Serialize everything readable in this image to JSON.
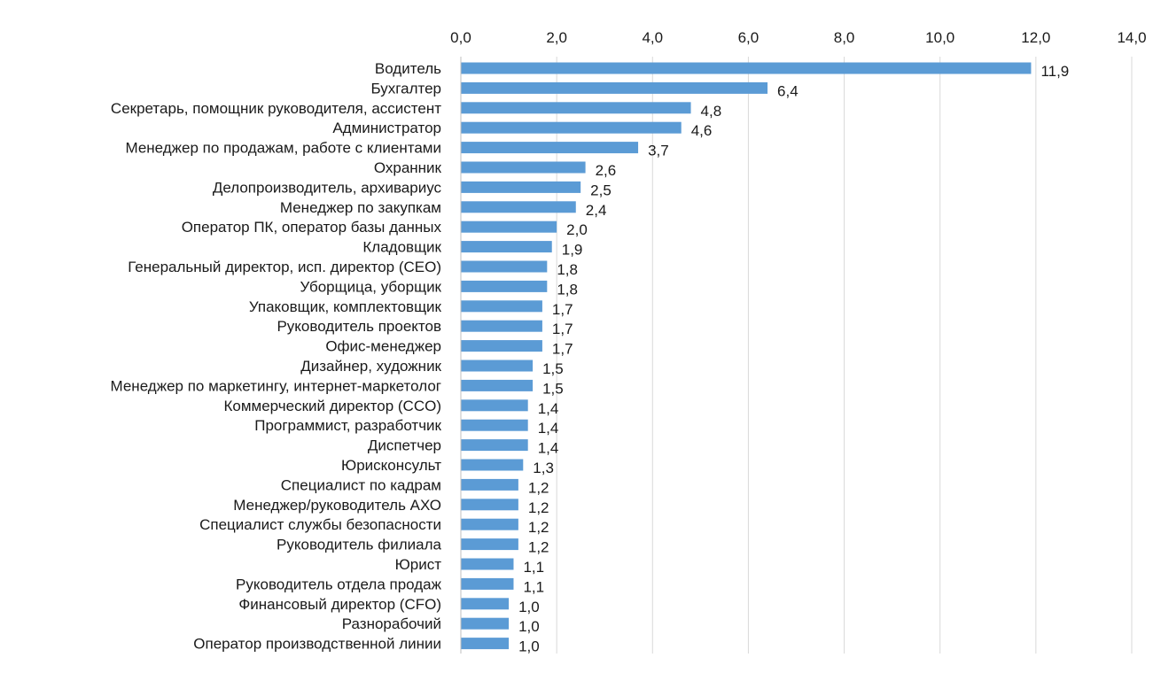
{
  "chart_data": {
    "type": "bar",
    "orientation": "horizontal",
    "title": "",
    "xlabel": "",
    "ylabel": "",
    "xlim": [
      0,
      14
    ],
    "x_ticks": [
      "0,0",
      "2,0",
      "4,0",
      "6,0",
      "8,0",
      "10,0",
      "12,0",
      "14,0"
    ],
    "x_tick_values": [
      0,
      2,
      4,
      6,
      8,
      10,
      12,
      14
    ],
    "x_axis_position": "top",
    "grid": true,
    "bar_color": "#5b9bd5",
    "categories": [
      "Водитель",
      "Бухгалтер",
      "Секретарь, помощник руководителя, ассистент",
      "Администратор",
      "Менеджер по продажам, работе с клиентами",
      "Охранник",
      "Делопроизводитель, архивариус",
      "Менеджер по закупкам",
      "Оператор ПК, оператор базы данных",
      "Кладовщик",
      "Генеральный директор, исп. директор (CEO)",
      "Уборщица, уборщик",
      "Упаковщик, комплектовщик",
      "Руководитель проектов",
      "Офис-менеджер",
      "Дизайнер, художник",
      "Менеджер по маркетингу, интернет-маркетолог",
      "Коммерческий директор (CCO)",
      "Программист, разработчик",
      "Диспетчер",
      "Юрисконсульт",
      "Специалист по кадрам",
      "Менеджер/руководитель АХО",
      "Специалист службы безопасности",
      "Руководитель филиала",
      "Юрист",
      "Руководитель отдела продаж",
      "Финансовый директор (CFO)",
      "Разнорабочий",
      "Оператор производственной линии"
    ],
    "values": [
      11.9,
      6.4,
      4.8,
      4.6,
      3.7,
      2.6,
      2.5,
      2.4,
      2.0,
      1.9,
      1.8,
      1.8,
      1.7,
      1.7,
      1.7,
      1.5,
      1.5,
      1.4,
      1.4,
      1.4,
      1.3,
      1.2,
      1.2,
      1.2,
      1.2,
      1.1,
      1.1,
      1.0,
      1.0,
      1.0
    ],
    "value_labels": [
      "11,9",
      "6,4",
      "4,8",
      "4,6",
      "3,7",
      "2,6",
      "2,5",
      "2,4",
      "2,0",
      "1,9",
      "1,8",
      "1,8",
      "1,7",
      "1,7",
      "1,7",
      "1,5",
      "1,5",
      "1,4",
      "1,4",
      "1,4",
      "1,3",
      "1,2",
      "1,2",
      "1,2",
      "1,2",
      "1,1",
      "1,1",
      "1,0",
      "1,0",
      "1,0"
    ]
  }
}
